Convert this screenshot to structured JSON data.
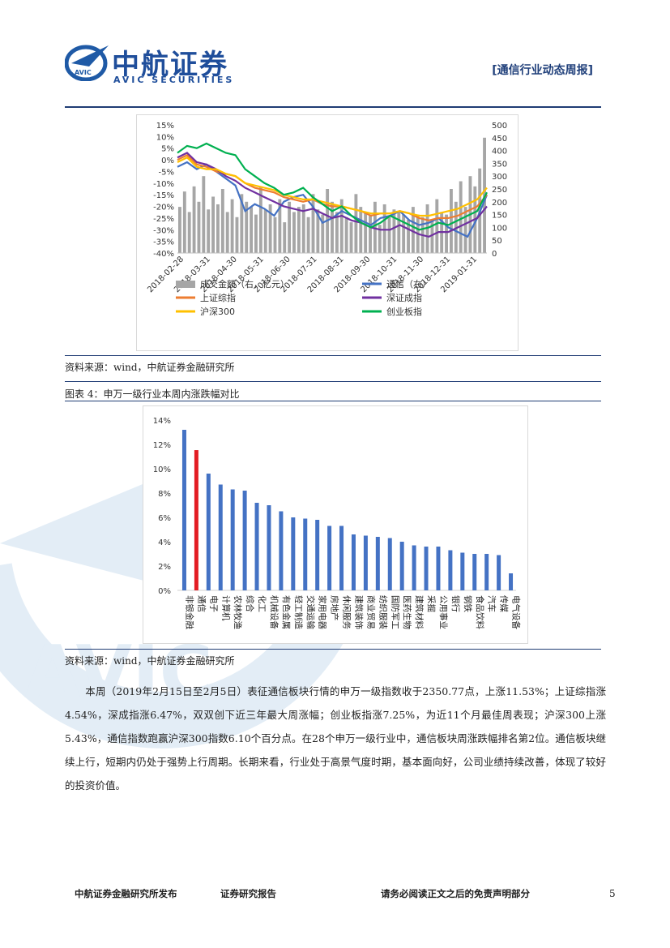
{
  "header": {
    "company_cn": "中航证券",
    "company_en": "AVIC SECURITIES",
    "logo_badge": "AVIC",
    "report_type": "[通信行业动态周报]"
  },
  "watermark": {
    "text": "AVIC"
  },
  "chart1": {
    "source": "资料来源：wind，中航证券金融研究所",
    "chart_data": {
      "type": "line",
      "x_ticks": [
        "2018-02-28",
        "2018-03-31",
        "2018-04-30",
        "2018-05-31",
        "2018-06-30",
        "2018-07-31",
        "2018-08-31",
        "2018-09-30",
        "2018-10-31",
        "2018-11-30",
        "2018-12-31",
        "2019-01-31"
      ],
      "y_left_ticks": [
        "15%",
        "10%",
        "5%",
        "0%",
        "-5%",
        "-10%",
        "-15%",
        "-20%",
        "-25%",
        "-30%",
        "-35%",
        "-40%"
      ],
      "y_right_ticks": [
        "500",
        "450",
        "400",
        "350",
        "300",
        "250",
        "200",
        "150",
        "100",
        "50",
        "0"
      ],
      "ylim_left": [
        -40,
        15
      ],
      "ylim_right": [
        0,
        500
      ],
      "legend": [
        {
          "name": "成交金额（右，亿元）",
          "color": "#a6a6a6",
          "kind": "bar"
        },
        {
          "name": "通信（右）",
          "color": "#4472c4",
          "kind": "line"
        },
        {
          "name": "上证综指",
          "color": "#ed7d31",
          "kind": "line"
        },
        {
          "name": "深证成指",
          "color": "#7030a0",
          "kind": "line"
        },
        {
          "name": "沪深300",
          "color": "#ffc000",
          "kind": "line"
        },
        {
          "name": "创业板指",
          "color": "#00b050",
          "kind": "line"
        }
      ],
      "series": [
        {
          "name": "通信（右）",
          "color": "#4472c4",
          "values": [
            -3,
            -1,
            -4,
            -2,
            -5,
            -8,
            -11,
            -22,
            -19,
            -21,
            -24,
            -18,
            -16,
            -15,
            -20,
            -27,
            -25,
            -22,
            -24,
            -26,
            -28,
            -25,
            -24,
            -22,
            -26,
            -28,
            -27,
            -25,
            -29,
            -31,
            -33,
            -25,
            -15
          ]
        },
        {
          "name": "上证综指",
          "color": "#ed7d31",
          "values": [
            0,
            2,
            -2,
            -3,
            -5,
            -6,
            -7,
            -10,
            -12,
            -13,
            -14,
            -16,
            -17,
            -18,
            -17,
            -19,
            -20,
            -20,
            -21,
            -22,
            -24,
            -23,
            -23,
            -22,
            -23,
            -25,
            -26,
            -25,
            -25,
            -24,
            -22,
            -20,
            -15
          ]
        },
        {
          "name": "深证成指",
          "color": "#7030a0",
          "values": [
            1,
            3,
            -1,
            -2,
            -4,
            -7,
            -9,
            -12,
            -14,
            -16,
            -18,
            -20,
            -21,
            -22,
            -21,
            -23,
            -25,
            -24,
            -26,
            -27,
            -29,
            -30,
            -30,
            -28,
            -30,
            -32,
            -33,
            -31,
            -31,
            -29,
            -27,
            -25,
            -20
          ]
        },
        {
          "name": "沪深300",
          "color": "#ffc000",
          "values": [
            -1,
            1,
            -3,
            -4,
            -4,
            -6,
            -7,
            -10,
            -11,
            -12,
            -13,
            -15,
            -16,
            -17,
            -17,
            -18,
            -19,
            -20,
            -21,
            -22,
            -23,
            -23,
            -23,
            -22,
            -23,
            -24,
            -24,
            -23,
            -22,
            -21,
            -19,
            -17,
            -12
          ]
        },
        {
          "name": "创业板指",
          "color": "#00b050",
          "values": [
            3,
            6,
            5,
            7,
            5,
            3,
            2,
            -4,
            -7,
            -10,
            -12,
            -15,
            -14,
            -12,
            -16,
            -19,
            -22,
            -20,
            -24,
            -27,
            -29,
            -27,
            -24,
            -26,
            -28,
            -30,
            -29,
            -27,
            -28,
            -26,
            -24,
            -22,
            -14
          ]
        }
      ],
      "volume": [
        180,
        240,
        160,
        260,
        200,
        300,
        170,
        220,
        190,
        250,
        160,
        210,
        140,
        230,
        200,
        180,
        150,
        260,
        170,
        190,
        140,
        210,
        120,
        200,
        160,
        180,
        190,
        140,
        230,
        170,
        150,
        250,
        200,
        160,
        210,
        140,
        120,
        230,
        180,
        160,
        150,
        200,
        110,
        190,
        140,
        170,
        160,
        150,
        130,
        180,
        150,
        140,
        190,
        130,
        210,
        160,
        150,
        250,
        200,
        280,
        180,
        300,
        260,
        330,
        450
      ]
    }
  },
  "chart2": {
    "figure_title": "图表 4：申万一级行业本周内涨跌幅对比",
    "source": "资料来源：wind，中航证券金融研究所",
    "chart_data": {
      "type": "bar",
      "y_ticks": [
        "14%",
        "12%",
        "10%",
        "8%",
        "6%",
        "4%",
        "2%",
        "0%"
      ],
      "ylim": [
        0,
        14
      ],
      "categories": [
        "非银金融",
        "通信",
        "电子",
        "计算机",
        "农林牧渔",
        "综合",
        "化工",
        "机械设备",
        "有色金属",
        "轻工制造",
        "交通运输",
        "家用电器",
        "房地产",
        "休闲服务",
        "建筑装饰",
        "商业贸易",
        "纺织服装",
        "国防军工",
        "医药生物",
        "建筑材料",
        "采掘",
        "公用事业",
        "银行",
        "钢铁",
        "食品饮料",
        "汽车",
        "传媒",
        "电气设备"
      ],
      "labels_shown": [
        "非银金融",
        "通信",
        "电子",
        "计算机",
        "农林牧渔",
        "综合",
        "化工",
        "机械设备",
        "有色金属",
        "轻工制造",
        "交通运输",
        "家用电器",
        "房地产",
        "休闲服务",
        "建筑装饰",
        "商业贸易",
        "纺织服装",
        "国防军工",
        "医药生物",
        "建筑材料",
        "采掘",
        "公用事业",
        "银行",
        "钢铁",
        "食品饮料",
        "汽车",
        "传媒",
        "电气设备"
      ],
      "values": [
        13.2,
        11.53,
        9.6,
        8.7,
        8.3,
        8.2,
        7.2,
        7.0,
        6.5,
        6.0,
        5.9,
        5.8,
        5.3,
        5.3,
        4.6,
        4.5,
        4.4,
        4.3,
        4.0,
        3.7,
        3.6,
        3.6,
        3.3,
        3.1,
        3.0,
        3.0,
        2.9,
        1.4
      ],
      "highlight_index": 1,
      "bar_color": "#4472c4",
      "highlight_color": "#e31c23"
    }
  },
  "body_text": "本周（2019年2月15日至2月5日）表征通信板块行情的申万一级指数收于2350.77点，上涨11.53%；上证综指涨4.54%，深成指涨6.47%，双双创下近三年最大周涨幅；创业板指涨7.25%，为近11个月最佳周表现；沪深300上涨5.43%，通信指数跑赢沪深300指数6.10个百分点。在28个申万一级行业中，通信板块周涨跌幅排名第2位。通信板块继续上行，短期内仍处于强势上行周期。长期来看，行业处于高景气度时期，基本面向好，公司业绩持续改善，体现了较好的投资价值。",
  "footer": {
    "publisher": "中航证券金融研究所发布",
    "report_kind": "证券研究报告",
    "disclaimer": "请务必阅读正文之后的免责声明部分",
    "page_number": "5"
  }
}
